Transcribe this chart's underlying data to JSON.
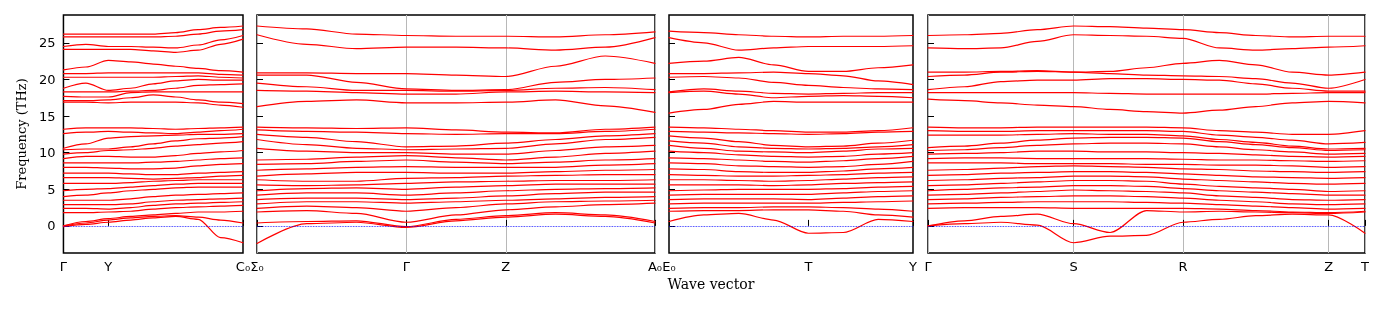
{
  "chart_data": [
    {
      "type": "line",
      "ylabel": "Frequency (THz)",
      "color": "#ff0000",
      "categories": [
        "Γ",
        null,
        "Y",
        null,
        null,
        null,
        null,
        null,
        "C₀"
      ],
      "ylim": [
        -3.7,
        28.8
      ],
      "yticks": [
        0,
        5,
        10,
        15,
        20,
        25
      ],
      "ref_lines": [
        {
          "axis": "y",
          "value": 0,
          "color": "#0000ff",
          "line_style": "dotted"
        }
      ],
      "series": [
        {
          "values": [
            26.2,
            26.2,
            26.2,
            26.2,
            26.2,
            26.4,
            26.8,
            27.1,
            27.3
          ]
        },
        {
          "values": [
            25.8,
            25.8,
            25.8,
            25.8,
            25.8,
            25.9,
            26.2,
            26.6,
            26.8
          ]
        },
        {
          "values": [
            24.5,
            24.8,
            24.5,
            24.5,
            24.4,
            24.3,
            24.7,
            25.4,
            26.0
          ]
        },
        {
          "values": [
            24.1,
            24.1,
            24.1,
            24.1,
            23.9,
            23.7,
            24.0,
            24.8,
            25.5
          ]
        },
        {
          "values": [
            21.3,
            21.7,
            22.6,
            22.4,
            22.1,
            21.8,
            21.5,
            21.2,
            21.0
          ]
        },
        {
          "values": [
            20.8,
            20.8,
            20.9,
            20.9,
            20.9,
            20.9,
            20.9,
            20.7,
            20.6
          ]
        },
        {
          "values": [
            20.3,
            20.3,
            20.3,
            20.3,
            20.3,
            20.4,
            20.5,
            20.3,
            20.2
          ]
        },
        {
          "values": [
            18.8,
            19.5,
            18.5,
            18.8,
            19.4,
            19.8,
            20.0,
            19.9,
            19.9
          ]
        },
        {
          "values": [
            18.3,
            18.3,
            18.3,
            18.4,
            18.5,
            18.8,
            19.2,
            19.3,
            19.4
          ]
        },
        {
          "values": [
            17.7,
            17.6,
            17.6,
            18.2,
            18.3,
            18.3,
            18.3,
            18.3,
            18.3
          ]
        },
        {
          "values": [
            17.1,
            17.1,
            17.2,
            17.5,
            17.9,
            17.6,
            17.2,
            16.9,
            16.7
          ]
        },
        {
          "values": [
            16.9,
            16.9,
            16.8,
            16.9,
            16.9,
            16.9,
            16.8,
            16.5,
            16.2
          ]
        },
        {
          "values": [
            13.2,
            13.4,
            13.4,
            13.4,
            13.3,
            13.2,
            13.3,
            13.4,
            13.5
          ]
        },
        {
          "values": [
            12.6,
            12.8,
            12.9,
            12.8,
            12.7,
            12.6,
            12.8,
            13.0,
            13.2
          ]
        },
        {
          "values": [
            10.6,
            11.2,
            12.0,
            12.2,
            12.3,
            12.4,
            12.5,
            12.5,
            12.6
          ]
        },
        {
          "values": [
            10.4,
            10.5,
            10.5,
            10.8,
            11.2,
            11.6,
            11.9,
            12.0,
            12.2
          ]
        },
        {
          "values": [
            9.8,
            10.0,
            10.3,
            10.4,
            10.6,
            10.9,
            11.1,
            11.3,
            11.5
          ]
        },
        {
          "values": [
            9.2,
            9.5,
            9.5,
            9.4,
            9.4,
            9.6,
            9.9,
            10.1,
            10.3
          ]
        },
        {
          "values": [
            8.6,
            8.6,
            8.6,
            8.6,
            8.7,
            8.8,
            9.0,
            9.2,
            9.3
          ]
        },
        {
          "values": [
            8.0,
            8.0,
            7.9,
            7.8,
            7.8,
            7.9,
            8.2,
            8.4,
            8.5
          ]
        },
        {
          "values": [
            7.2,
            7.2,
            7.2,
            7.1,
            7.0,
            7.0,
            7.2,
            7.3,
            7.4
          ]
        },
        {
          "values": [
            6.6,
            6.6,
            6.6,
            6.5,
            6.4,
            6.5,
            6.6,
            6.8,
            6.9
          ]
        },
        {
          "values": [
            5.8,
            5.8,
            5.8,
            5.9,
            6.1,
            6.2,
            6.3,
            6.3,
            6.3
          ]
        },
        {
          "values": [
            4.8,
            5.0,
            5.1,
            5.3,
            5.5,
            5.7,
            5.8,
            5.8,
            5.8
          ]
        },
        {
          "values": [
            4.0,
            4.2,
            4.5,
            4.8,
            5.0,
            5.2,
            5.3,
            5.3,
            5.3
          ]
        },
        {
          "values": [
            3.5,
            3.5,
            3.5,
            3.7,
            4.0,
            4.2,
            4.3,
            4.4,
            4.5
          ]
        },
        {
          "values": [
            2.9,
            2.9,
            2.9,
            3.0,
            3.3,
            3.5,
            3.6,
            3.7,
            3.8
          ]
        },
        {
          "values": [
            2.4,
            2.4,
            2.3,
            2.5,
            2.8,
            3.0,
            3.1,
            3.2,
            3.3
          ]
        },
        {
          "values": [
            1.8,
            1.8,
            1.9,
            2.0,
            2.3,
            2.5,
            2.6,
            2.7,
            2.8
          ]
        },
        {
          "values": [
            0.0,
            0.6,
            1.0,
            1.3,
            1.5,
            1.7,
            1.9,
            1.9,
            2.0
          ]
        },
        {
          "values": [
            0.0,
            0.4,
            0.8,
            1.1,
            1.3,
            1.4,
            1.2,
            0.8,
            0.4
          ]
        },
        {
          "values": [
            -0.1,
            0.2,
            0.5,
            0.8,
            1.1,
            1.3,
            0.9,
            -1.6,
            -2.3
          ]
        }
      ]
    },
    {
      "type": "line",
      "color": "#ff0000",
      "grid": "x",
      "tick_labels": "x",
      "categories": [
        "Σ₀",
        null,
        null,
        "Γ",
        null,
        "Z",
        null,
        null,
        "A₀"
      ],
      "ylim": [
        -3.7,
        28.8
      ],
      "yticks": [
        0,
        5,
        10,
        15,
        20,
        25
      ],
      "ref_lines": [
        {
          "axis": "y",
          "value": 0,
          "color": "#0000ff",
          "line_style": "dotted"
        }
      ],
      "series": [
        {
          "values": [
            27.3,
            26.9,
            26.2,
            26.0,
            25.9,
            25.9,
            25.8,
            26.1,
            26.5
          ]
        },
        {
          "values": [
            26.1,
            24.8,
            24.2,
            24.4,
            24.4,
            24.3,
            24.0,
            24.4,
            25.7
          ]
        },
        {
          "values": [
            20.9,
            20.9,
            20.8,
            20.8,
            20.6,
            20.4,
            21.8,
            23.2,
            22.2
          ]
        },
        {
          "values": [
            20.6,
            20.6,
            19.6,
            18.7,
            18.5,
            18.6,
            19.6,
            20.0,
            20.2
          ]
        },
        {
          "values": [
            19.5,
            19.0,
            18.5,
            18.5,
            18.4,
            18.5,
            18.8,
            18.9,
            18.6
          ]
        },
        {
          "values": [
            18.5,
            18.4,
            18.2,
            18.0,
            18.0,
            18.3,
            18.4,
            18.3,
            18.2
          ]
        },
        {
          "values": [
            16.3,
            17.0,
            17.2,
            16.8,
            16.8,
            16.9,
            17.2,
            16.4,
            15.5
          ]
        },
        {
          "values": [
            13.5,
            13.4,
            13.3,
            13.4,
            13.1,
            12.8,
            12.7,
            13.2,
            13.5
          ]
        },
        {
          "values": [
            13.1,
            12.9,
            12.8,
            12.6,
            12.5,
            12.6,
            12.6,
            12.9,
            13.2
          ]
        },
        {
          "values": [
            12.5,
            12.1,
            11.5,
            10.8,
            10.9,
            11.3,
            11.8,
            12.3,
            12.6
          ]
        },
        {
          "values": [
            11.8,
            11.1,
            10.6,
            10.4,
            10.5,
            10.6,
            11.2,
            11.8,
            12.1
          ]
        },
        {
          "values": [
            10.6,
            10.2,
            10.0,
            10.0,
            9.8,
            9.8,
            10.3,
            10.8,
            11.0
          ]
        },
        {
          "values": [
            9.0,
            9.1,
            9.4,
            9.6,
            9.3,
            9.0,
            9.4,
            9.9,
            10.2
          ]
        },
        {
          "values": [
            8.4,
            8.5,
            8.8,
            9.0,
            8.7,
            8.5,
            8.7,
            9.0,
            9.2
          ]
        },
        {
          "values": [
            7.6,
            7.8,
            8.0,
            8.1,
            8.0,
            8.0,
            8.0,
            8.3,
            8.5
          ]
        },
        {
          "values": [
            6.8,
            7.1,
            7.3,
            7.3,
            7.2,
            7.2,
            7.4,
            7.6,
            7.7
          ]
        },
        {
          "values": [
            6.3,
            6.1,
            6.1,
            6.5,
            6.6,
            6.8,
            6.9,
            7.0,
            7.0
          ]
        },
        {
          "values": [
            5.6,
            5.5,
            5.6,
            5.8,
            6.0,
            6.1,
            6.2,
            6.2,
            6.3
          ]
        },
        {
          "values": [
            4.8,
            5.1,
            5.2,
            5.0,
            5.3,
            5.5,
            5.7,
            5.7,
            5.7
          ]
        },
        {
          "values": [
            4.2,
            4.5,
            4.5,
            4.2,
            4.5,
            4.8,
            5.0,
            5.1,
            5.2
          ]
        },
        {
          "values": [
            3.6,
            3.8,
            3.8,
            3.6,
            3.8,
            4.1,
            4.4,
            4.6,
            4.6
          ]
        },
        {
          "values": [
            3.0,
            3.3,
            3.3,
            3.1,
            3.3,
            3.5,
            3.7,
            3.9,
            4.0
          ]
        },
        {
          "values": [
            2.4,
            2.7,
            2.5,
            2.0,
            2.5,
            3.0,
            3.3,
            3.4,
            3.5
          ]
        },
        {
          "values": [
            1.9,
            2.1,
            1.7,
            0.5,
            1.5,
            2.2,
            2.6,
            2.9,
            3.1
          ]
        },
        {
          "values": [
            0.4,
            0.6,
            0.7,
            -0.1,
            0.9,
            1.4,
            1.8,
            1.5,
            0.6
          ]
        },
        {
          "values": [
            -2.4,
            0.3,
            0.5,
            -0.2,
            0.7,
            1.2,
            1.6,
            1.3,
            0.4
          ]
        }
      ]
    },
    {
      "type": "line",
      "xlabel": "Wave vector",
      "color": "#ff0000",
      "tick_labels": "x",
      "categories": [
        "E₀",
        null,
        null,
        null,
        "T",
        null,
        null,
        "Y"
      ],
      "ylim": [
        -3.7,
        28.8
      ],
      "yticks": [
        0,
        5,
        10,
        15,
        20,
        25
      ],
      "ref_lines": [
        {
          "axis": "y",
          "value": 0,
          "color": "#0000ff",
          "line_style": "dotted"
        }
      ],
      "series": [
        {
          "values": [
            26.6,
            26.4,
            26.1,
            25.9,
            25.8,
            25.9,
            25.9,
            26.0
          ]
        },
        {
          "values": [
            25.7,
            25.0,
            24.0,
            24.3,
            24.5,
            24.5,
            24.5,
            24.6
          ]
        },
        {
          "values": [
            22.2,
            22.5,
            23.0,
            22.0,
            21.1,
            21.1,
            21.6,
            22.0
          ]
        },
        {
          "values": [
            20.8,
            20.8,
            20.9,
            21.0,
            20.8,
            20.5,
            19.8,
            19.3
          ]
        },
        {
          "values": [
            20.3,
            20.4,
            20.2,
            19.6,
            19.2,
            18.9,
            18.7,
            18.6
          ]
        },
        {
          "values": [
            18.3,
            18.7,
            18.4,
            18.1,
            18.0,
            18.1,
            18.2,
            18.2
          ]
        },
        {
          "values": [
            18.2,
            18.4,
            18.0,
            17.5,
            17.7,
            17.8,
            17.7,
            17.5
          ]
        },
        {
          "values": [
            15.4,
            15.9,
            16.6,
            17.0,
            16.9,
            16.9,
            16.9,
            16.9
          ]
        },
        {
          "values": [
            13.5,
            13.4,
            13.2,
            13.0,
            12.8,
            12.8,
            13.0,
            13.4
          ]
        },
        {
          "values": [
            12.9,
            12.8,
            12.7,
            12.6,
            12.5,
            12.6,
            12.8,
            12.9
          ]
        },
        {
          "values": [
            12.3,
            12.0,
            11.5,
            11.0,
            10.8,
            10.9,
            11.3,
            11.7
          ]
        },
        {
          "values": [
            11.6,
            11.3,
            10.8,
            10.6,
            10.5,
            10.6,
            10.8,
            11.1
          ]
        },
        {
          "values": [
            11.0,
            10.6,
            10.2,
            10.1,
            10.0,
            10.2,
            10.5,
            10.6
          ]
        },
        {
          "values": [
            10.2,
            10.0,
            9.7,
            9.5,
            9.4,
            9.5,
            9.8,
            10.0
          ]
        },
        {
          "values": [
            9.3,
            9.2,
            9.0,
            8.8,
            8.7,
            8.9,
            9.2,
            9.5
          ]
        },
        {
          "values": [
            8.6,
            8.5,
            8.2,
            8.1,
            8.0,
            8.1,
            8.4,
            8.8
          ]
        },
        {
          "values": [
            7.8,
            7.7,
            7.4,
            7.3,
            7.3,
            7.5,
            7.8,
            8.0
          ]
        },
        {
          "values": [
            7.0,
            6.9,
            6.8,
            6.8,
            6.9,
            7.0,
            7.2,
            7.3
          ]
        },
        {
          "values": [
            6.3,
            6.3,
            6.2,
            6.1,
            6.2,
            6.4,
            6.6,
            6.7
          ]
        },
        {
          "values": [
            5.6,
            5.6,
            5.6,
            5.5,
            5.6,
            5.8,
            5.9,
            6.0
          ]
        },
        {
          "values": [
            4.8,
            4.9,
            5.0,
            5.0,
            5.0,
            5.1,
            5.3,
            5.4
          ]
        },
        {
          "values": [
            4.2,
            4.3,
            4.3,
            4.3,
            4.3,
            4.5,
            4.7,
            4.8
          ]
        },
        {
          "values": [
            3.6,
            3.7,
            3.7,
            3.7,
            3.6,
            3.8,
            4.0,
            4.1
          ]
        },
        {
          "values": [
            3.0,
            3.1,
            3.1,
            3.1,
            3.1,
            3.2,
            3.3,
            3.4
          ]
        },
        {
          "values": [
            2.4,
            2.5,
            2.5,
            2.6,
            2.6,
            2.5,
            2.3,
            2.0
          ]
        },
        {
          "values": [
            2.0,
            2.1,
            2.1,
            2.2,
            2.2,
            2.0,
            1.5,
            1.2
          ]
        },
        {
          "values": [
            0.6,
            1.5,
            1.7,
            0.8,
            -1.0,
            -0.9,
            0.9,
            0.6
          ]
        }
      ]
    },
    {
      "type": "line",
      "color": "#ff0000",
      "grid": "x",
      "tick_labels": "x",
      "categories": [
        "Γ",
        null,
        null,
        null,
        "S",
        null,
        null,
        "R",
        null,
        null,
        null,
        "Z",
        "T"
      ],
      "ylim": [
        -3.7,
        28.8
      ],
      "yticks": [
        0,
        5,
        10,
        15,
        20,
        25
      ],
      "ref_lines": [
        {
          "axis": "y",
          "value": 0,
          "color": "#0000ff",
          "line_style": "dotted"
        }
      ],
      "series": [
        {
          "values": [
            26.0,
            26.1,
            26.3,
            26.8,
            27.3,
            27.2,
            27.0,
            26.8,
            26.4,
            26.0,
            25.8,
            25.9,
            25.9
          ]
        },
        {
          "values": [
            24.3,
            24.2,
            24.3,
            25.2,
            26.1,
            26.0,
            25.9,
            25.6,
            24.3,
            24.0,
            24.2,
            24.4,
            24.6
          ]
        },
        {
          "values": [
            21.0,
            21.0,
            21.1,
            21.2,
            21.0,
            21.1,
            21.6,
            22.2,
            22.6,
            22.0,
            21.0,
            20.6,
            21.0
          ]
        },
        {
          "values": [
            20.4,
            20.6,
            21.0,
            21.1,
            21.0,
            20.8,
            20.6,
            20.5,
            20.4,
            20.1,
            19.5,
            18.8,
            20.0
          ]
        },
        {
          "values": [
            18.6,
            19.0,
            19.7,
            19.9,
            19.9,
            20.1,
            20.1,
            20.0,
            19.9,
            19.4,
            18.8,
            18.4,
            18.4
          ]
        },
        {
          "values": [
            18.2,
            18.2,
            18.2,
            18.2,
            18.2,
            18.1,
            18.0,
            18.0,
            18.0,
            18.0,
            18.1,
            18.2,
            18.2
          ]
        },
        {
          "values": [
            17.3,
            17.1,
            16.8,
            16.5,
            16.3,
            15.9,
            15.6,
            15.4,
            15.8,
            16.3,
            16.8,
            17.0,
            16.8
          ]
        },
        {
          "values": [
            13.5,
            13.4,
            13.4,
            13.5,
            13.5,
            13.5,
            13.5,
            13.4,
            13.0,
            12.8,
            12.5,
            12.5,
            13.0
          ]
        },
        {
          "values": [
            13.0,
            12.9,
            12.9,
            13.0,
            13.0,
            13.0,
            13.0,
            12.9,
            12.4,
            12.1,
            11.7,
            11.2,
            11.4
          ]
        },
        {
          "values": [
            12.4,
            12.4,
            12.4,
            12.5,
            12.6,
            12.5,
            12.5,
            12.3,
            11.8,
            11.4,
            10.9,
            10.5,
            10.6
          ]
        },
        {
          "values": [
            10.7,
            10.9,
            11.3,
            11.7,
            12.0,
            12.1,
            12.1,
            12.0,
            11.5,
            11.1,
            10.7,
            10.3,
            10.4
          ]
        },
        {
          "values": [
            10.3,
            10.4,
            10.7,
            11.0,
            11.2,
            11.3,
            11.3,
            11.2,
            10.8,
            10.4,
            10.1,
            9.8,
            9.9
          ]
        },
        {
          "values": [
            9.8,
            9.9,
            10.0,
            10.2,
            10.2,
            10.1,
            10.1,
            10.0,
            9.9,
            9.7,
            9.5,
            9.4,
            9.5
          ]
        },
        {
          "values": [
            9.2,
            9.3,
            9.3,
            9.2,
            9.2,
            9.2,
            9.2,
            9.1,
            9.0,
            9.0,
            8.9,
            8.8,
            8.9
          ]
        },
        {
          "values": [
            8.6,
            8.6,
            8.6,
            8.5,
            8.5,
            8.5,
            8.4,
            8.4,
            8.3,
            8.3,
            8.2,
            8.0,
            8.1
          ]
        },
        {
          "values": [
            7.6,
            7.7,
            7.9,
            8.1,
            8.2,
            8.1,
            8.0,
            7.8,
            7.7,
            7.5,
            7.4,
            7.3,
            7.4
          ]
        },
        {
          "values": [
            6.9,
            7.0,
            7.2,
            7.3,
            7.4,
            7.4,
            7.3,
            7.1,
            6.9,
            6.7,
            6.6,
            6.5,
            6.6
          ]
        },
        {
          "values": [
            6.2,
            6.3,
            6.5,
            6.6,
            6.8,
            6.8,
            6.7,
            6.4,
            6.2,
            6.0,
            5.8,
            5.7,
            5.8
          ]
        },
        {
          "values": [
            5.5,
            5.6,
            5.8,
            6.0,
            6.2,
            6.2,
            6.1,
            5.7,
            5.4,
            5.2,
            5.0,
            4.7,
            4.8
          ]
        },
        {
          "values": [
            4.8,
            5.0,
            5.2,
            5.3,
            5.5,
            5.5,
            5.4,
            5.1,
            4.8,
            4.6,
            4.4,
            4.2,
            4.2
          ]
        },
        {
          "values": [
            4.2,
            4.3,
            4.5,
            4.7,
            4.9,
            4.8,
            4.7,
            4.5,
            4.1,
            3.9,
            3.6,
            3.5,
            3.6
          ]
        },
        {
          "values": [
            3.6,
            3.7,
            3.9,
            4.0,
            4.1,
            4.1,
            4.0,
            3.8,
            3.5,
            3.3,
            3.0,
            2.9,
            3.0
          ]
        },
        {
          "values": [
            3.0,
            3.1,
            3.2,
            3.3,
            3.3,
            3.3,
            3.2,
            3.1,
            2.9,
            2.7,
            2.5,
            2.3,
            2.4
          ]
        },
        {
          "values": [
            2.4,
            2.5,
            2.5,
            2.5,
            2.4,
            2.4,
            2.4,
            2.4,
            2.3,
            2.1,
            1.9,
            1.8,
            2.0
          ]
        },
        {
          "values": [
            0.0,
            0.7,
            1.3,
            1.6,
            0.3,
            -0.9,
            2.1,
            1.9,
            2.0,
            1.9,
            1.8,
            1.7,
            1.9
          ]
        },
        {
          "values": [
            0.0,
            0.3,
            0.5,
            0.1,
            -2.3,
            -1.4,
            -1.3,
            0.5,
            0.9,
            1.4,
            1.6,
            1.5,
            -1.0
          ]
        }
      ]
    }
  ]
}
